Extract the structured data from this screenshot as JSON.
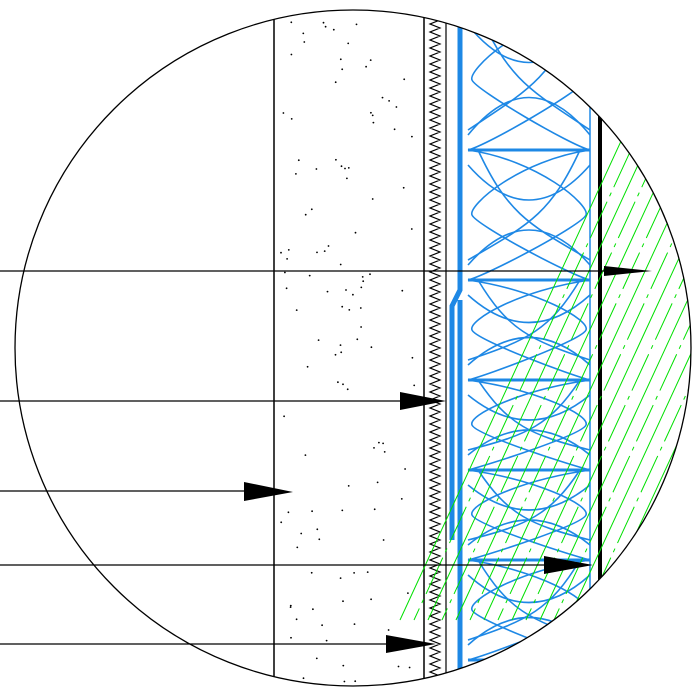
{
  "drawing": {
    "colors": {
      "background": "#ffffff",
      "linework": "#000000",
      "insulation": "#1e88e5",
      "membrane": "#1e88e5",
      "cladding_hatch": "#00e000"
    },
    "layers": [
      {
        "name": "masonry-block",
        "pattern": "stipple"
      },
      {
        "name": "render-key",
        "pattern": "zigzag"
      },
      {
        "name": "vapour-membrane",
        "pattern": "solid-blue"
      },
      {
        "name": "mineral-wool-insulation",
        "pattern": "blue-loops"
      },
      {
        "name": "cavity-board",
        "pattern": "solid-black"
      },
      {
        "name": "cladding",
        "pattern": "green-diagonal-hatch"
      }
    ],
    "leaders": [
      {
        "target": "cladding"
      },
      {
        "target": "vapour-membrane"
      },
      {
        "target": "masonry-block"
      },
      {
        "target": "mineral-wool-insulation"
      },
      {
        "target": "render-key"
      }
    ]
  }
}
